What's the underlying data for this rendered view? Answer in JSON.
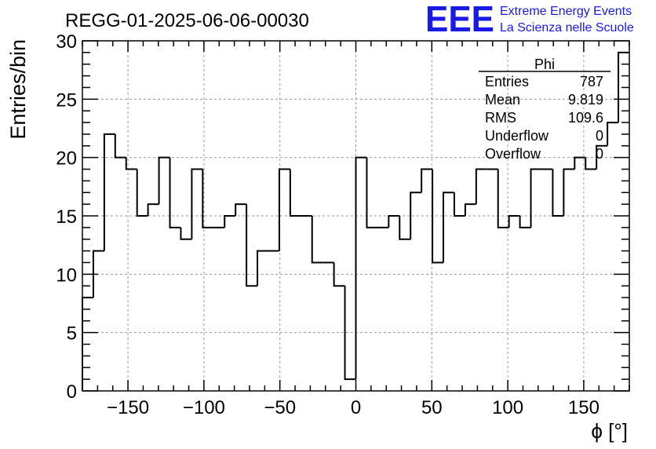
{
  "header": {
    "title": "REGG-01-2025-06-06-00030"
  },
  "logo": {
    "mark": "EEE",
    "line1": "Extreme Energy Events",
    "line2": "La Scienza nelle Scuole",
    "color": "#1a1ae6"
  },
  "stats": {
    "title": "Phi",
    "rows": [
      {
        "label": "Entries",
        "value": "787"
      },
      {
        "label": "Mean",
        "value": "9.819"
      },
      {
        "label": "RMS",
        "value": "109.6"
      },
      {
        "label": "Underflow",
        "value": "0"
      },
      {
        "label": "Overflow",
        "value": "0"
      }
    ]
  },
  "chart_data": {
    "type": "bar",
    "style": "step-histogram",
    "title": "REGG-01-2025-06-06-00030",
    "xlabel": "ϕ [°]",
    "ylabel": "Entries/bin",
    "xlim": [
      -180,
      180
    ],
    "ylim": [
      0,
      30
    ],
    "bin_width": 7.2,
    "x_ticks": [
      -150,
      -100,
      -50,
      0,
      50,
      100,
      150
    ],
    "y_ticks": [
      0,
      5,
      10,
      15,
      20,
      25,
      30
    ],
    "grid": true,
    "series": [
      {
        "values": [
          8,
          12,
          22,
          20,
          19,
          15,
          16,
          20,
          14,
          13,
          19,
          14,
          14,
          15,
          16,
          9,
          12,
          12,
          19,
          15,
          15,
          11,
          11,
          9,
          1,
          20,
          14,
          14,
          15,
          13,
          17,
          19,
          11,
          17,
          15,
          16,
          19,
          19,
          14,
          15,
          14,
          19,
          19,
          15,
          19,
          20,
          19,
          21,
          23,
          29
        ]
      }
    ]
  }
}
